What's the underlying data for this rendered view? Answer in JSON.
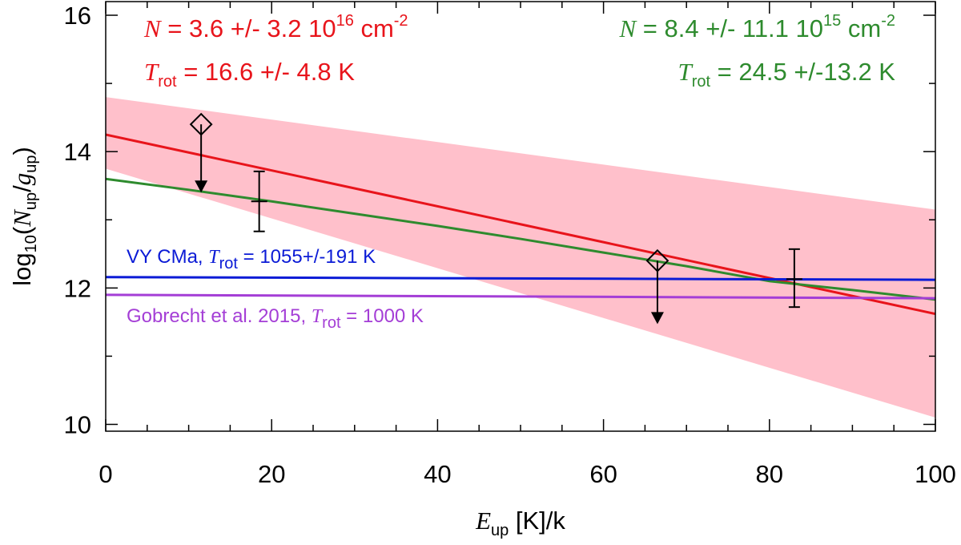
{
  "chart_data": {
    "type": "line",
    "xlim": [
      0,
      100
    ],
    "ylim": [
      9.9,
      16.2
    ],
    "x_major_ticks": [
      0,
      20,
      40,
      60,
      80,
      100
    ],
    "x_minor_step": 5,
    "y_major_ticks": [
      10,
      12,
      14,
      16
    ],
    "y_minor_step": 1,
    "x_tick_labels": [
      "0",
      "20",
      "40",
      "60",
      "80",
      "100"
    ],
    "y_tick_labels": [
      "10",
      "12",
      "14",
      "16"
    ],
    "xlabel": {
      "sym": "E",
      "sub": "up",
      "rest": " [K]/k"
    },
    "ylabel": {
      "pre": "log",
      "sub1": "10",
      "open": "(",
      "num": "N",
      "numsub": "up",
      "slash": "/",
      "den": "g",
      "densub": "up",
      "close": ")"
    },
    "band": {
      "color": "#ffc0cb",
      "upper": {
        "x": [
          0,
          100
        ],
        "y": [
          14.8,
          13.15
        ]
      },
      "lower": {
        "x": [
          0,
          100
        ],
        "y": [
          13.75,
          10.1
        ]
      }
    },
    "series": [
      {
        "key": "red",
        "color": "#e8141b",
        "x": [
          0,
          100
        ],
        "y": [
          14.25,
          11.62
        ]
      },
      {
        "key": "green",
        "color": "#2e8b2e",
        "x": [
          0,
          10,
          20,
          30,
          40,
          50,
          60,
          70,
          80,
          90,
          100
        ],
        "y": [
          13.6,
          13.44,
          13.27,
          13.09,
          12.91,
          12.72,
          12.52,
          12.32,
          12.1,
          11.97,
          11.83
        ]
      },
      {
        "key": "blue",
        "name": "VY CMa",
        "color": "#0b1bd6",
        "x": [
          0,
          100
        ],
        "y": [
          12.16,
          12.12
        ]
      },
      {
        "key": "purple",
        "name": "Gobrecht et al. 2015",
        "color": "#a43ed6",
        "x": [
          0,
          100
        ],
        "y": [
          11.9,
          11.85
        ]
      }
    ],
    "error_bars": [
      {
        "x": 18.5,
        "y": 13.27,
        "ylow": 12.83,
        "yhigh": 13.71
      },
      {
        "x": 83.0,
        "y": 12.13,
        "ylow": 11.72,
        "yhigh": 12.57
      }
    ],
    "upper_limits": [
      {
        "x": 11.5,
        "y": 14.4,
        "yarrow": 13.4
      },
      {
        "x": 66.5,
        "y": 12.4,
        "yarrow": 11.47
      }
    ],
    "annotations": {
      "red": {
        "color": "#e8141b",
        "line1": {
          "sym": "N",
          "text": " = 3.6 +/-  3.2 10",
          "sup": "16",
          "unit": " cm",
          "unitsup": "-2"
        },
        "line2": {
          "sym": "T",
          "sub": "rot",
          "text": " =  16.6 +/- 4.8 K"
        }
      },
      "green": {
        "color": "#2e8b2e",
        "line1": {
          "sym": "N",
          "text": " = 8.4 +/- 11.1 10",
          "sup": "15",
          "unit": " cm",
          "unitsup": "-2"
        },
        "line2": {
          "sym": "T",
          "sub": "rot",
          "text": " =  24.5 +/-13.2 K"
        }
      },
      "blue": {
        "color": "#0b1bd6",
        "pre": "VY CMa, ",
        "sym": "T",
        "sub": "rot",
        "post": " = 1055+/-191 K"
      },
      "purple": {
        "color": "#a43ed6",
        "pre": "Gobrecht et al. 2015, ",
        "sym": "T",
        "sub": "rot",
        "post": " = 1000 K"
      }
    }
  }
}
